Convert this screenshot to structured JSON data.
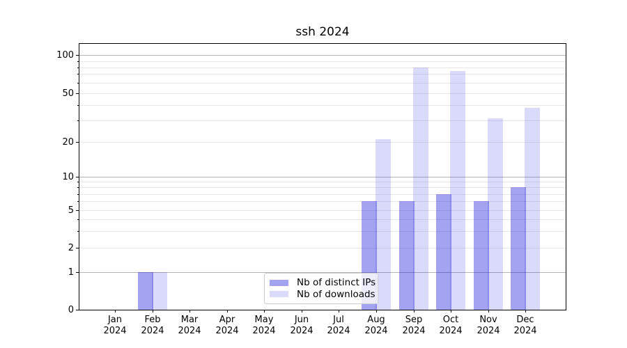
{
  "title": "ssh 2024",
  "chart_data": {
    "type": "bar",
    "title": "ssh 2024",
    "categories": [
      "Jan 2024",
      "Feb 2024",
      "Mar 2024",
      "Apr 2024",
      "May 2024",
      "Jun 2024",
      "Jul 2024",
      "Aug 2024",
      "Sep 2024",
      "Oct 2024",
      "Nov 2024",
      "Dec 2024"
    ],
    "series": [
      {
        "name": "Nb of distinct IPs",
        "color": "rgba(26,26,223,0.40)",
        "color_hex_on_white": "#a4a4f2",
        "values": [
          0,
          1,
          0,
          0,
          0,
          0,
          0,
          6,
          6,
          7,
          6,
          8
        ]
      },
      {
        "name": "Nb of downloads",
        "color": "rgba(26,26,223,0.16)",
        "color_hex_on_white": "#dadaf9",
        "values": [
          0,
          1,
          0,
          0,
          0,
          0,
          0,
          21,
          80,
          74,
          31,
          38
        ]
      }
    ],
    "yscale": "symlog",
    "ylim": [
      0,
      110
    ],
    "yticks_labeled": [
      0,
      1,
      2,
      5,
      10,
      20,
      50,
      100
    ],
    "yticks_minor": [
      3,
      4,
      6,
      7,
      8,
      9,
      30,
      40,
      60,
      70,
      80,
      90
    ],
    "ygrid_major": [
      1,
      10,
      100
    ],
    "grid": true,
    "legend_position": "lower center",
    "colors": {
      "grid_major": "#b4b4b4",
      "grid_minor": "#e7e7e7",
      "axis": "#000000",
      "background": "#ffffff"
    }
  },
  "legend": {
    "items": [
      {
        "label": "Nb of distinct IPs"
      },
      {
        "label": "Nb of downloads"
      }
    ]
  }
}
